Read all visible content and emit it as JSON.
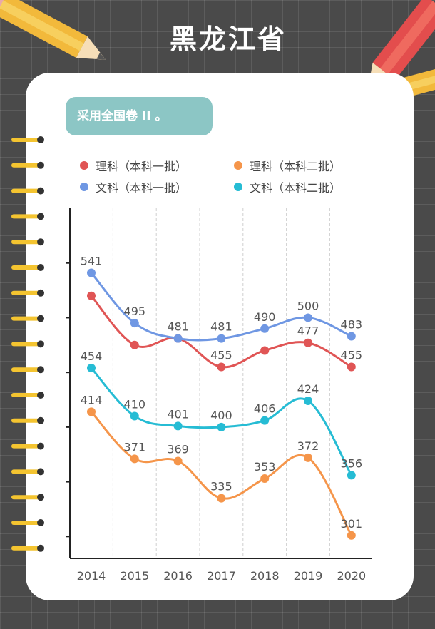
{
  "header": {
    "title": "黑龙江省"
  },
  "note": {
    "text": "采用全国卷 II 。"
  },
  "chart_data": {
    "type": "line",
    "categories": [
      "2014",
      "2015",
      "2016",
      "2017",
      "2018",
      "2019",
      "2020"
    ],
    "ylim": [
      280,
      600
    ],
    "series": [
      {
        "name": "理科（本科一批）",
        "color": "#e05555",
        "values": [
          520,
          475,
          481,
          455,
          470,
          477,
          455
        ]
      },
      {
        "name": "理科（本科二批）",
        "color": "#f5954a",
        "values": [
          414,
          371,
          369,
          335,
          353,
          372,
          301
        ]
      },
      {
        "name": "文科（本科一批）",
        "color": "#6f97e3",
        "values": [
          541,
          495,
          481,
          481,
          490,
          500,
          483
        ]
      },
      {
        "name": "文科（本科二批）",
        "color": "#26bcd4",
        "values": [
          454,
          410,
          401,
          400,
          406,
          424,
          356
        ]
      }
    ],
    "data_labels": [
      {
        "series": 2,
        "index": 0,
        "text": "541"
      },
      {
        "series": 2,
        "index": 1,
        "text": "495"
      },
      {
        "series": 2,
        "index": 2,
        "text": "481"
      },
      {
        "series": 2,
        "index": 3,
        "text": "481"
      },
      {
        "series": 2,
        "index": 4,
        "text": "490"
      },
      {
        "series": 2,
        "index": 5,
        "text": "500"
      },
      {
        "series": 2,
        "index": 6,
        "text": "483"
      },
      {
        "series": 0,
        "index": 3,
        "text": "455"
      },
      {
        "series": 0,
        "index": 5,
        "text": "477"
      },
      {
        "series": 0,
        "index": 6,
        "text": "455"
      },
      {
        "series": 3,
        "index": 0,
        "text": "454"
      },
      {
        "series": 3,
        "index": 1,
        "text": "410"
      },
      {
        "series": 3,
        "index": 2,
        "text": "401"
      },
      {
        "series": 3,
        "index": 3,
        "text": "400"
      },
      {
        "series": 3,
        "index": 4,
        "text": "406"
      },
      {
        "series": 3,
        "index": 5,
        "text": "424"
      },
      {
        "series": 3,
        "index": 6,
        "text": "356"
      },
      {
        "series": 1,
        "index": 0,
        "text": "414"
      },
      {
        "series": 1,
        "index": 1,
        "text": "371"
      },
      {
        "series": 1,
        "index": 2,
        "text": "369"
      },
      {
        "series": 1,
        "index": 3,
        "text": "335"
      },
      {
        "series": 1,
        "index": 4,
        "text": "353"
      },
      {
        "series": 1,
        "index": 5,
        "text": "372"
      },
      {
        "series": 1,
        "index": 6,
        "text": "301"
      }
    ]
  }
}
